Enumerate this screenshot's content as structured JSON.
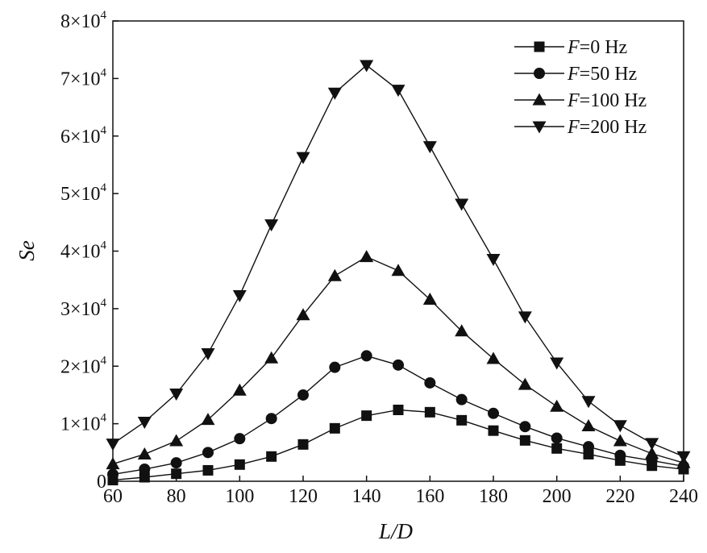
{
  "chart_data": {
    "type": "line",
    "xlabel": "L/D",
    "ylabel": "Se",
    "xlim": [
      60,
      240
    ],
    "ylim": [
      0,
      80000
    ],
    "x_ticks": [
      "60",
      "80",
      "100",
      "120",
      "140",
      "160",
      "180",
      "200",
      "220",
      "240"
    ],
    "y_ticks": [
      {
        "value": 0,
        "mantissa": "0",
        "times": "",
        "base": "",
        "exp": ""
      },
      {
        "value": 10000,
        "mantissa": "1",
        "times": "×",
        "base": "10",
        "exp": "4"
      },
      {
        "value": 20000,
        "mantissa": "2",
        "times": "×",
        "base": "10",
        "exp": "4"
      },
      {
        "value": 30000,
        "mantissa": "3",
        "times": "×",
        "base": "10",
        "exp": "4"
      },
      {
        "value": 40000,
        "mantissa": "4",
        "times": "×",
        "base": "10",
        "exp": "4"
      },
      {
        "value": 50000,
        "mantissa": "5",
        "times": "×",
        "base": "10",
        "exp": "4"
      },
      {
        "value": 60000,
        "mantissa": "6",
        "times": "×",
        "base": "10",
        "exp": "4"
      },
      {
        "value": 70000,
        "mantissa": "7",
        "times": "×",
        "base": "10",
        "exp": "4"
      },
      {
        "value": 80000,
        "mantissa": "8",
        "times": "×",
        "base": "10",
        "exp": "4"
      }
    ],
    "x": [
      60,
      70,
      80,
      90,
      100,
      110,
      120,
      130,
      140,
      150,
      160,
      170,
      180,
      190,
      200,
      210,
      220,
      230,
      240
    ],
    "series": [
      {
        "label_var": "F",
        "label_rest": "=0 Hz",
        "marker": "square",
        "values": [
          200,
          700,
          1300,
          1900,
          2900,
          4300,
          6400,
          9200,
          11400,
          12400,
          12000,
          10600,
          8800,
          7100,
          5700,
          4700,
          3600,
          2700,
          2100
        ]
      },
      {
        "label_var": "F",
        "label_rest": "=50 Hz",
        "marker": "circle",
        "values": [
          1200,
          2100,
          3200,
          5000,
          7400,
          10900,
          15000,
          19800,
          21800,
          20200,
          17100,
          14200,
          11800,
          9500,
          7500,
          6000,
          4500,
          3600,
          2600
        ]
      },
      {
        "label_var": "F",
        "label_rest": "=100 Hz",
        "marker": "triangle-up",
        "values": [
          3000,
          4700,
          7000,
          10700,
          15800,
          21400,
          28900,
          35700,
          39000,
          36600,
          31600,
          26100,
          21300,
          16800,
          13000,
          9600,
          7000,
          4800,
          3200
        ]
      },
      {
        "label_var": "F",
        "label_rest": "=200 Hz",
        "marker": "triangle-down",
        "values": [
          6500,
          10300,
          15200,
          22200,
          32300,
          44600,
          56300,
          67500,
          72300,
          68000,
          58200,
          48200,
          38600,
          28600,
          20600,
          13900,
          9700,
          6600,
          4300
        ]
      }
    ],
    "legend": "top-right",
    "grid": false,
    "colors": {
      "line": "#111111",
      "marker": "#111111"
    }
  }
}
